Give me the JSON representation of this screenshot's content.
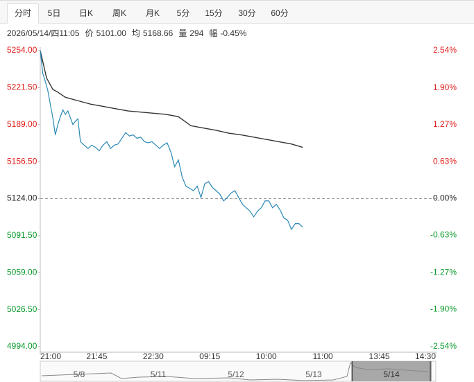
{
  "tabs": [
    "分时",
    "5日",
    "日K",
    "周K",
    "月K",
    "5分",
    "15分",
    "30分",
    "60分"
  ],
  "info": {
    "time": "2026/05/14/四11:05",
    "items": [
      {
        "label": "价",
        "value": "5101.00"
      },
      {
        "label": "均",
        "value": "5168.66"
      },
      {
        "label": "量",
        "value": "294"
      },
      {
        "label": "幅",
        "value": "-0.45%"
      }
    ]
  },
  "navigator": [
    "5/8",
    "5/11",
    "5/12",
    "5/13",
    "5/14"
  ],
  "chart_data": {
    "type": "line",
    "xlim": [
      0,
      315
    ],
    "xticks": [
      {
        "value": 0,
        "label": "21:00"
      },
      {
        "value": 45,
        "label": "21:45"
      },
      {
        "value": 90,
        "label": "22:30"
      },
      {
        "value": 135,
        "label": "09:15"
      },
      {
        "value": 180,
        "label": "10:00"
      },
      {
        "value": 225,
        "label": "11:00"
      },
      {
        "value": 270,
        "label": "13:45"
      },
      {
        "value": 315,
        "label": "14:30"
      }
    ],
    "ylim": [
      4994,
      5254
    ],
    "yticks": [
      {
        "value": 5254,
        "label": "5254.00"
      },
      {
        "value": 5221.5,
        "label": "5221.50"
      },
      {
        "value": 5189,
        "label": "5189.00"
      },
      {
        "value": 5156.5,
        "label": "5156.50"
      },
      {
        "value": 5124,
        "label": "5124.00"
      },
      {
        "value": 5091.5,
        "label": "5091.50"
      },
      {
        "value": 5059,
        "label": "5059.00"
      },
      {
        "value": 5026.5,
        "label": "5026.50"
      },
      {
        "value": 4994,
        "label": "4994.00"
      }
    ],
    "y2lim": [
      -2.54,
      2.54
    ],
    "y2ticks": [
      {
        "value": 2.54,
        "label": "2.54%"
      },
      {
        "value": 1.9,
        "label": "1.90%"
      },
      {
        "value": 1.27,
        "label": "1.27%"
      },
      {
        "value": 0.63,
        "label": "0.63%"
      },
      {
        "value": 0,
        "label": "0.00%"
      },
      {
        "value": -0.63,
        "label": "-0.63%"
      },
      {
        "value": -1.27,
        "label": "-1.27%"
      },
      {
        "value": -1.9,
        "label": "-1.90%"
      },
      {
        "value": -2.54,
        "label": "-2.54%"
      }
    ],
    "reference": 5124,
    "up_color": "#e0201b",
    "down_color": "#0a9a2a",
    "flat_color": "#222222",
    "series": [
      {
        "color": "#2a88b5",
        "x": [
          0,
          2,
          4,
          6,
          8,
          10,
          12,
          14,
          16,
          18,
          20,
          22,
          24,
          26,
          28,
          30,
          32,
          35,
          38,
          41,
          44,
          47,
          50,
          53,
          56,
          59,
          62,
          65,
          68,
          71,
          74,
          77,
          80,
          83,
          86,
          89,
          92,
          95,
          98,
          101,
          104,
          107,
          110,
          113,
          116,
          119,
          122,
          125,
          128,
          131,
          134,
          137,
          140,
          143,
          146,
          149,
          152,
          155,
          158,
          161,
          164,
          167,
          170,
          173,
          176,
          179,
          182,
          185,
          188,
          191,
          194,
          197,
          200,
          203,
          206,
          209
        ],
        "values": [
          5254,
          5234,
          5227,
          5219,
          5207,
          5195,
          5180,
          5189,
          5196,
          5202,
          5198,
          5201,
          5195,
          5189,
          5192,
          5194,
          5174,
          5171,
          5168,
          5171,
          5169,
          5166,
          5171,
          5174,
          5168,
          5171,
          5172,
          5177,
          5182,
          5179,
          5180,
          5177,
          5178,
          5174,
          5173,
          5174,
          5171,
          5168,
          5171,
          5173,
          5165,
          5152,
          5158,
          5143,
          5135,
          5133,
          5131,
          5135,
          5125,
          5137,
          5139,
          5134,
          5131,
          5128,
          5122,
          5125,
          5129,
          5131,
          5125,
          5119,
          5116,
          5113,
          5108,
          5113,
          5116,
          5122,
          5122,
          5116,
          5119,
          5114,
          5107,
          5105,
          5097,
          5102,
          5102,
          5099
        ]
      },
      {
        "color": "#333333",
        "x": [
          0,
          5,
          10,
          14,
          20,
          30,
          40,
          50,
          60,
          70,
          80,
          90,
          100,
          110,
          115,
          120,
          130,
          140,
          150,
          160,
          170,
          180,
          190,
          200,
          209
        ],
        "values": [
          5254,
          5230,
          5220,
          5217.5,
          5213,
          5210,
          5207,
          5205,
          5203,
          5201,
          5200,
          5199,
          5198,
          5196,
          5192,
          5188,
          5186,
          5184,
          5181.5,
          5180,
          5178,
          5176,
          5174,
          5172,
          5169
        ]
      }
    ]
  }
}
